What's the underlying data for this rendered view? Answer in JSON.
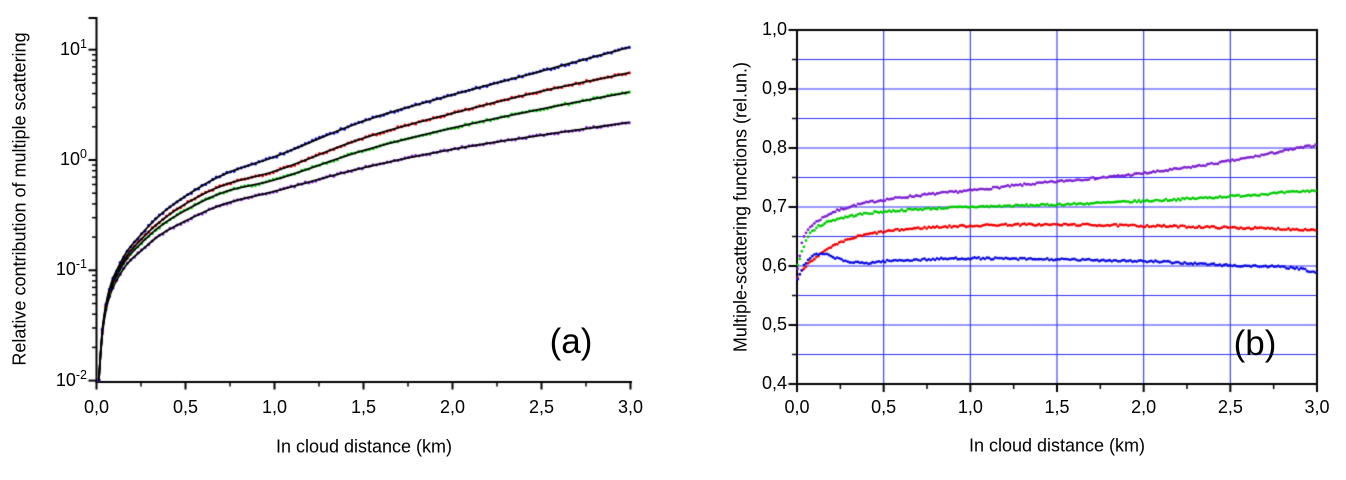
{
  "figure": {
    "background": "#ffffff",
    "axis_color": "#000000",
    "grid_color": "#3232ff"
  },
  "chart_data": [
    {
      "id": "a",
      "type": "scatter",
      "title": "(a)",
      "xlabel": "In cloud distance (km)",
      "ylabel": "Relative contribution of multiple scattering",
      "xlim": [
        0,
        3.0
      ],
      "ylim": [
        0.01,
        19.8
      ],
      "y_scale": "log",
      "frame": "axes-only",
      "grid": false,
      "x_ticks": {
        "values": [
          0,
          0.5,
          1.0,
          1.5,
          2.0,
          2.5,
          3.0
        ],
        "labels": [
          "0,0",
          "0,5",
          "1,0",
          "1,5",
          "2,0",
          "2,5",
          "3,0"
        ],
        "minor_step": 0.25
      },
      "y_ticks": {
        "base": "10",
        "exponents": [
          1,
          0,
          -1,
          -2
        ],
        "values": [
          10,
          1,
          0.1,
          0.01
        ],
        "log_minors": true
      },
      "point_step": 0.02,
      "noise_rel": 0.042,
      "marker_radius": 1.6,
      "fit_line_color": "#000000",
      "series": [
        {
          "name": "purple",
          "color": "#7d1fd2",
          "fit_line": true,
          "x": [
            0.013,
            0.03,
            0.05,
            0.08,
            0.12,
            0.17,
            0.25,
            0.35,
            0.5,
            0.7,
            1.0,
            1.5,
            2.0,
            2.5,
            3.0
          ],
          "y": [
            0.01,
            0.024,
            0.041,
            0.062,
            0.085,
            0.113,
            0.15,
            0.205,
            0.28,
            0.39,
            0.52,
            0.85,
            1.25,
            1.68,
            2.2
          ]
        },
        {
          "name": "green",
          "color": "#00cc00",
          "fit_line": true,
          "x": [
            0.013,
            0.03,
            0.05,
            0.08,
            0.12,
            0.17,
            0.25,
            0.35,
            0.5,
            0.7,
            1.0,
            1.5,
            2.0,
            2.5,
            3.0
          ],
          "y": [
            0.01,
            0.025,
            0.043,
            0.067,
            0.093,
            0.127,
            0.175,
            0.245,
            0.35,
            0.5,
            0.66,
            1.22,
            1.95,
            2.9,
            4.15
          ]
        },
        {
          "name": "red",
          "color": "#f20000",
          "fit_line": true,
          "x": [
            0.013,
            0.03,
            0.05,
            0.08,
            0.12,
            0.17,
            0.25,
            0.35,
            0.5,
            0.7,
            1.0,
            1.5,
            2.0,
            2.5,
            3.0
          ],
          "y": [
            0.01,
            0.025,
            0.044,
            0.07,
            0.098,
            0.135,
            0.19,
            0.27,
            0.4,
            0.58,
            0.79,
            1.58,
            2.65,
            4.2,
            6.2
          ]
        },
        {
          "name": "blue",
          "color": "#0d0de0",
          "fit_line": true,
          "x": [
            0.013,
            0.03,
            0.05,
            0.08,
            0.12,
            0.17,
            0.25,
            0.35,
            0.5,
            0.7,
            1.0,
            1.5,
            2.0,
            2.5,
            3.0
          ],
          "y": [
            0.01,
            0.026,
            0.046,
            0.074,
            0.105,
            0.147,
            0.21,
            0.31,
            0.47,
            0.72,
            1.07,
            2.25,
            3.9,
            6.4,
            10.6
          ]
        }
      ]
    },
    {
      "id": "b",
      "type": "scatter",
      "title": "(b)",
      "xlabel": "In cloud distance (km)",
      "ylabel": "Multiple-scattering functions (rel.un.)",
      "xlim": [
        0,
        3.0
      ],
      "ylim": [
        0.4,
        1.0
      ],
      "y_scale": "linear",
      "frame": "box",
      "grid": {
        "color": "#3232ff",
        "h_step": 0.05,
        "v_step": 0.5
      },
      "x_ticks": {
        "values": [
          0,
          0.5,
          1.0,
          1.5,
          2.0,
          2.5,
          3.0
        ],
        "labels": [
          "0,0",
          "0,5",
          "1,0",
          "1,5",
          "2,0",
          "2,5",
          "3,0"
        ],
        "minor_step": 0.25
      },
      "y_ticks": {
        "values": [
          1.0,
          0.9,
          0.8,
          0.7,
          0.6,
          0.5,
          0.4
        ],
        "labels": [
          "1,0",
          "0,9",
          "0,8",
          "0,7",
          "0,6",
          "0,5",
          "0,4"
        ],
        "minor_step": 0.05
      },
      "point_step": 0.012,
      "noise_abs": 0.0035,
      "marker_radius": 1.4,
      "series": [
        {
          "name": "purple",
          "color": "#7d1fd2",
          "fit_line": false,
          "x": [
            0.0,
            0.03,
            0.06,
            0.1,
            0.15,
            0.2,
            0.3,
            0.4,
            0.5,
            0.75,
            1.0,
            1.25,
            1.5,
            2.0,
            2.5,
            2.9,
            3.0
          ],
          "y": [
            0.59,
            0.64,
            0.66,
            0.672,
            0.682,
            0.69,
            0.7,
            0.707,
            0.712,
            0.721,
            0.728,
            0.736,
            0.743,
            0.757,
            0.778,
            0.8,
            0.805
          ]
        },
        {
          "name": "green",
          "color": "#00cc00",
          "fit_line": false,
          "x": [
            0.0,
            0.03,
            0.06,
            0.1,
            0.15,
            0.2,
            0.3,
            0.4,
            0.5,
            0.75,
            1.0,
            1.25,
            1.5,
            2.0,
            2.5,
            2.9,
            3.0
          ],
          "y": [
            0.6,
            0.625,
            0.648,
            0.662,
            0.671,
            0.677,
            0.684,
            0.689,
            0.692,
            0.697,
            0.7,
            0.702,
            0.704,
            0.71,
            0.718,
            0.726,
            0.728
          ]
        },
        {
          "name": "red",
          "color": "#f20000",
          "fit_line": false,
          "x": [
            0.0,
            0.03,
            0.06,
            0.1,
            0.15,
            0.2,
            0.3,
            0.4,
            0.5,
            0.75,
            1.0,
            1.25,
            1.5,
            2.0,
            2.5,
            2.9,
            3.0
          ],
          "y": [
            0.578,
            0.592,
            0.603,
            0.613,
            0.623,
            0.632,
            0.645,
            0.653,
            0.658,
            0.665,
            0.668,
            0.67,
            0.67,
            0.668,
            0.665,
            0.662,
            0.661
          ]
        },
        {
          "name": "blue",
          "color": "#0d0de0",
          "fit_line": false,
          "x": [
            0.0,
            0.03,
            0.06,
            0.1,
            0.15,
            0.2,
            0.3,
            0.4,
            0.5,
            0.75,
            1.0,
            1.25,
            1.5,
            2.0,
            2.5,
            2.9,
            3.0
          ],
          "y": [
            0.575,
            0.595,
            0.608,
            0.618,
            0.62,
            0.616,
            0.607,
            0.605,
            0.608,
            0.611,
            0.613,
            0.612,
            0.611,
            0.608,
            0.601,
            0.595,
            0.588
          ]
        }
      ]
    }
  ]
}
